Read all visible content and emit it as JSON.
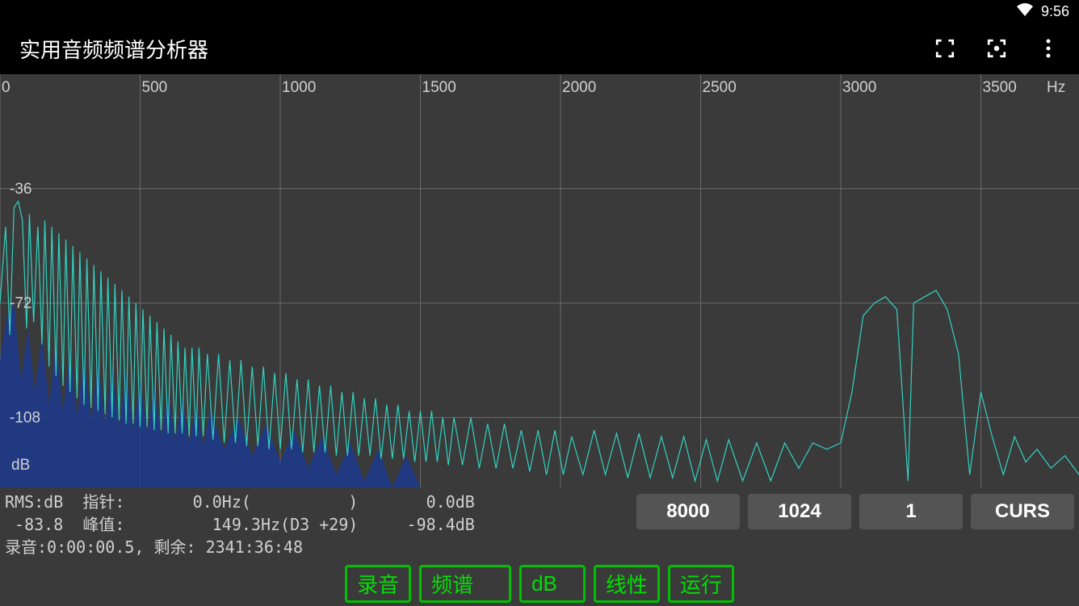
{
  "status": {
    "time": "9:56"
  },
  "app": {
    "title": "实用音频频谱分析器"
  },
  "chart": {
    "type": "line-spectrum",
    "bg_color": "#3a3a3a",
    "grid_color": "#6a6a6a",
    "axis_text_color": "#d0d0d0",
    "x_unit": "Hz",
    "y_unit": "dB",
    "xlim": [
      0,
      3850
    ],
    "ylim": [
      -130,
      0
    ],
    "xticks": [
      0,
      500,
      1000,
      1500,
      2000,
      2500,
      3000,
      3500
    ],
    "yticks": [
      -36,
      -72,
      -108
    ],
    "line_color": "#32d2c0",
    "fill_color": "#1e3a8a",
    "fill_opacity": 0.9,
    "line_width": 1.2,
    "envelope": [
      [
        0,
        -72
      ],
      [
        20,
        -48
      ],
      [
        35,
        -82
      ],
      [
        50,
        -42
      ],
      [
        65,
        -40
      ],
      [
        80,
        -46
      ],
      [
        95,
        -80
      ],
      [
        105,
        -44
      ],
      [
        120,
        -78
      ],
      [
        135,
        -48
      ],
      [
        150,
        -85
      ],
      [
        160,
        -46
      ],
      [
        175,
        -92
      ],
      [
        185,
        -48
      ],
      [
        200,
        -95
      ],
      [
        210,
        -50
      ],
      [
        225,
        -98
      ],
      [
        235,
        -52
      ],
      [
        250,
        -100
      ],
      [
        260,
        -54
      ],
      [
        275,
        -102
      ],
      [
        285,
        -56
      ],
      [
        300,
        -104
      ],
      [
        310,
        -58
      ],
      [
        325,
        -105
      ],
      [
        335,
        -60
      ],
      [
        350,
        -106
      ],
      [
        360,
        -62
      ],
      [
        375,
        -107
      ],
      [
        385,
        -64
      ],
      [
        400,
        -108
      ],
      [
        410,
        -66
      ],
      [
        425,
        -109
      ],
      [
        435,
        -68
      ],
      [
        450,
        -110
      ],
      [
        460,
        -70
      ],
      [
        475,
        -110
      ],
      [
        485,
        -72
      ],
      [
        500,
        -111
      ],
      [
        510,
        -74
      ],
      [
        525,
        -111
      ],
      [
        535,
        -76
      ],
      [
        550,
        -112
      ],
      [
        560,
        -78
      ],
      [
        575,
        -112
      ],
      [
        585,
        -80
      ],
      [
        600,
        -113
      ],
      [
        610,
        -82
      ],
      [
        625,
        -113
      ],
      [
        635,
        -84
      ],
      [
        650,
        -113
      ],
      [
        660,
        -86
      ],
      [
        675,
        -114
      ],
      [
        685,
        -86
      ],
      [
        700,
        -114
      ],
      [
        710,
        -86
      ],
      [
        725,
        -114
      ],
      [
        740,
        -88
      ],
      [
        760,
        -115
      ],
      [
        780,
        -88
      ],
      [
        800,
        -116
      ],
      [
        820,
        -90
      ],
      [
        840,
        -116
      ],
      [
        860,
        -90
      ],
      [
        880,
        -117
      ],
      [
        900,
        -92
      ],
      [
        920,
        -117
      ],
      [
        940,
        -92
      ],
      [
        960,
        -118
      ],
      [
        980,
        -94
      ],
      [
        1000,
        -118
      ],
      [
        1020,
        -94
      ],
      [
        1040,
        -118
      ],
      [
        1060,
        -96
      ],
      [
        1080,
        -119
      ],
      [
        1100,
        -96
      ],
      [
        1120,
        -119
      ],
      [
        1140,
        -98
      ],
      [
        1160,
        -119
      ],
      [
        1180,
        -98
      ],
      [
        1200,
        -120
      ],
      [
        1220,
        -100
      ],
      [
        1240,
        -120
      ],
      [
        1260,
        -100
      ],
      [
        1280,
        -120
      ],
      [
        1300,
        -102
      ],
      [
        1320,
        -120
      ],
      [
        1340,
        -102
      ],
      [
        1360,
        -121
      ],
      [
        1380,
        -104
      ],
      [
        1400,
        -121
      ],
      [
        1420,
        -104
      ],
      [
        1440,
        -121
      ],
      [
        1460,
        -106
      ],
      [
        1480,
        -122
      ],
      [
        1500,
        -106
      ],
      [
        1520,
        -122
      ],
      [
        1540,
        -106
      ],
      [
        1560,
        -122
      ],
      [
        1580,
        -108
      ],
      [
        1600,
        -123
      ],
      [
        1620,
        -108
      ],
      [
        1650,
        -123
      ],
      [
        1680,
        -108
      ],
      [
        1710,
        -124
      ],
      [
        1740,
        -110
      ],
      [
        1770,
        -124
      ],
      [
        1800,
        -110
      ],
      [
        1830,
        -124
      ],
      [
        1860,
        -112
      ],
      [
        1890,
        -125
      ],
      [
        1920,
        -112
      ],
      [
        1950,
        -126
      ],
      [
        1980,
        -112
      ],
      [
        2010,
        -126
      ],
      [
        2040,
        -114
      ],
      [
        2080,
        -126
      ],
      [
        2120,
        -112
      ],
      [
        2160,
        -126
      ],
      [
        2200,
        -113
      ],
      [
        2240,
        -127
      ],
      [
        2280,
        -113
      ],
      [
        2320,
        -127
      ],
      [
        2360,
        -114
      ],
      [
        2400,
        -127
      ],
      [
        2440,
        -114
      ],
      [
        2480,
        -128
      ],
      [
        2520,
        -115
      ],
      [
        2560,
        -128
      ],
      [
        2600,
        -115
      ],
      [
        2650,
        -128
      ],
      [
        2700,
        -116
      ],
      [
        2750,
        -128
      ],
      [
        2800,
        -116
      ],
      [
        2850,
        -124
      ],
      [
        2900,
        -116
      ],
      [
        2950,
        -118
      ],
      [
        3000,
        -116
      ],
      [
        3040,
        -100
      ],
      [
        3080,
        -76
      ],
      [
        3120,
        -72
      ],
      [
        3160,
        -70
      ],
      [
        3200,
        -74
      ],
      [
        3240,
        -128
      ],
      [
        3260,
        -72
      ],
      [
        3300,
        -70
      ],
      [
        3340,
        -68
      ],
      [
        3380,
        -74
      ],
      [
        3420,
        -88
      ],
      [
        3460,
        -126
      ],
      [
        3500,
        -100
      ],
      [
        3540,
        -114
      ],
      [
        3580,
        -126
      ],
      [
        3620,
        -114
      ],
      [
        3660,
        -122
      ],
      [
        3700,
        -118
      ],
      [
        3750,
        -124
      ],
      [
        3800,
        -120
      ],
      [
        3850,
        -126
      ]
    ],
    "fill_envelope": [
      [
        0,
        -90
      ],
      [
        25,
        -76
      ],
      [
        50,
        -72
      ],
      [
        75,
        -96
      ],
      [
        100,
        -80
      ],
      [
        125,
        -100
      ],
      [
        150,
        -82
      ],
      [
        175,
        -104
      ],
      [
        200,
        -84
      ],
      [
        225,
        -106
      ],
      [
        250,
        -86
      ],
      [
        275,
        -108
      ],
      [
        300,
        -88
      ],
      [
        325,
        -109
      ],
      [
        350,
        -90
      ],
      [
        375,
        -110
      ],
      [
        400,
        -92
      ],
      [
        425,
        -111
      ],
      [
        450,
        -94
      ],
      [
        475,
        -112
      ],
      [
        500,
        -96
      ],
      [
        525,
        -113
      ],
      [
        550,
        -98
      ],
      [
        575,
        -114
      ],
      [
        600,
        -100
      ],
      [
        625,
        -115
      ],
      [
        650,
        -102
      ],
      [
        675,
        -116
      ],
      [
        700,
        -104
      ],
      [
        725,
        -117
      ],
      [
        750,
        -106
      ],
      [
        800,
        -118
      ],
      [
        850,
        -108
      ],
      [
        900,
        -120
      ],
      [
        950,
        -110
      ],
      [
        1000,
        -122
      ],
      [
        1050,
        -112
      ],
      [
        1100,
        -124
      ],
      [
        1150,
        -114
      ],
      [
        1200,
        -126
      ],
      [
        1250,
        -116
      ],
      [
        1300,
        -128
      ],
      [
        1350,
        -118
      ],
      [
        1400,
        -130
      ],
      [
        1450,
        -120
      ],
      [
        1500,
        -130
      ],
      [
        1600,
        -130
      ],
      [
        1800,
        -130
      ],
      [
        2000,
        -130
      ],
      [
        3850,
        -130
      ]
    ]
  },
  "readout": {
    "rms_label": "RMS:dB",
    "pointer_label": "指针:",
    "pointer_hz": "0.0Hz(          )",
    "pointer_db": "0.0dB",
    "rms_value": "-83.8",
    "peak_label": "峰值:",
    "peak_hz": "149.3Hz(D3 +29)",
    "peak_db": "-98.4dB",
    "rec_line": "录音:0:00:00.5, 剩余: 2341:36:48"
  },
  "params": {
    "sample_rate": "8000",
    "fft_size": "1024",
    "avg": "1",
    "cursor": "CURS"
  },
  "buttons": {
    "record": "录音",
    "spectrum": "频谱",
    "db": "dB",
    "linear": "线性",
    "run": "运行"
  }
}
